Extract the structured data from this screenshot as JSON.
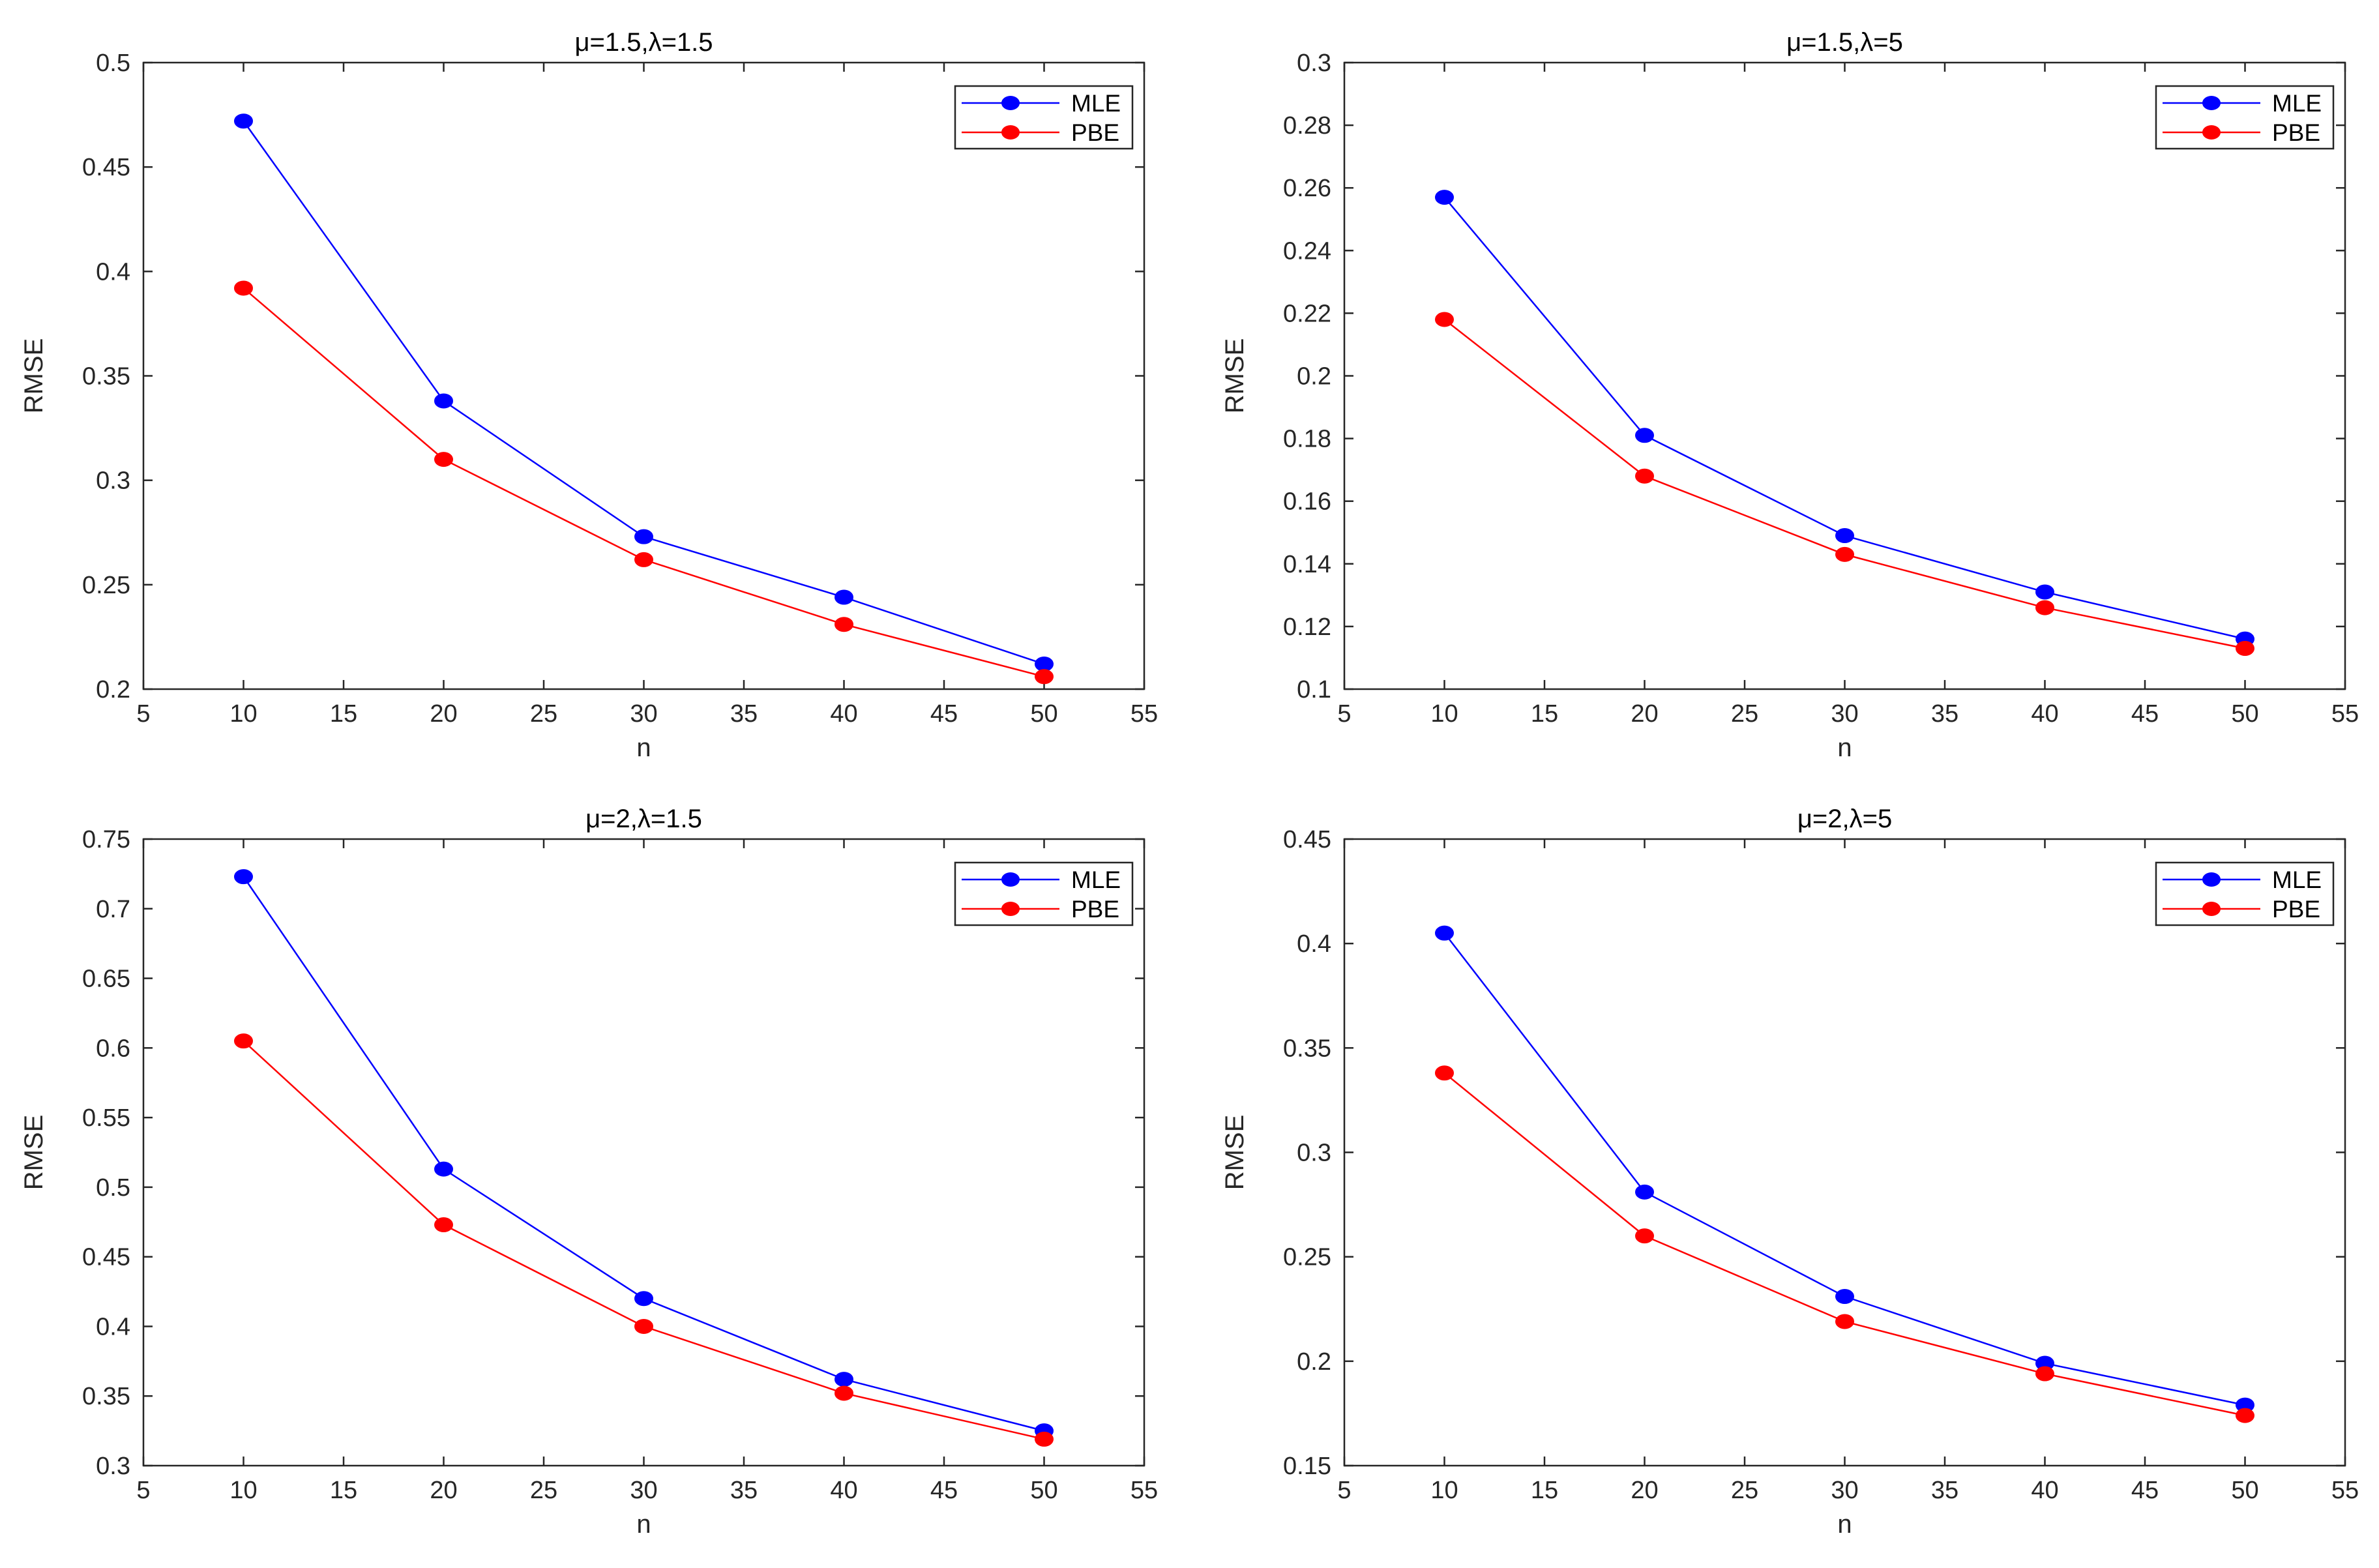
{
  "chart_data": [
    {
      "type": "line",
      "title": "μ=1.5,λ=1.5",
      "xlabel": "n",
      "ylabel": "RMSE",
      "xlim": [
        5,
        55
      ],
      "ylim": [
        0.2,
        0.5
      ],
      "xticks": [
        5,
        10,
        15,
        20,
        25,
        30,
        35,
        40,
        45,
        50,
        55
      ],
      "xtick_labels": [
        "5",
        "10",
        "15",
        "20",
        "25",
        "30",
        "35",
        "40",
        "45",
        "50",
        "55"
      ],
      "yticks": [
        0.2,
        0.25,
        0.3,
        0.35,
        0.4,
        0.45,
        0.5
      ],
      "ytick_labels": [
        "0.2",
        "0.25",
        "0.3",
        "0.35",
        "0.4",
        "0.45",
        "0.5"
      ],
      "legend_position": "top-right",
      "x": [
        10,
        20,
        30,
        40,
        50
      ],
      "series": [
        {
          "name": "MLE",
          "color": "#0000ff",
          "values": [
            0.472,
            0.338,
            0.273,
            0.244,
            0.212
          ]
        },
        {
          "name": "PBE",
          "color": "#ff0000",
          "values": [
            0.392,
            0.31,
            0.262,
            0.231,
            0.206
          ]
        }
      ]
    },
    {
      "type": "line",
      "title": "μ=1.5,λ=5",
      "xlabel": "n",
      "ylabel": "RMSE",
      "xlim": [
        5,
        55
      ],
      "ylim": [
        0.1,
        0.3
      ],
      "xticks": [
        5,
        10,
        15,
        20,
        25,
        30,
        35,
        40,
        45,
        50,
        55
      ],
      "xtick_labels": [
        "5",
        "10",
        "15",
        "20",
        "25",
        "30",
        "35",
        "40",
        "45",
        "50",
        "55"
      ],
      "yticks": [
        0.1,
        0.12,
        0.14,
        0.16,
        0.18,
        0.2,
        0.22,
        0.24,
        0.26,
        0.28,
        0.3
      ],
      "ytick_labels": [
        "0.1",
        "0.12",
        "0.14",
        "0.16",
        "0.18",
        "0.2",
        "0.22",
        "0.24",
        "0.26",
        "0.28",
        "0.3"
      ],
      "legend_position": "top-right",
      "x": [
        10,
        20,
        30,
        40,
        50
      ],
      "series": [
        {
          "name": "MLE",
          "color": "#0000ff",
          "values": [
            0.257,
            0.181,
            0.149,
            0.131,
            0.116
          ]
        },
        {
          "name": "PBE",
          "color": "#ff0000",
          "values": [
            0.218,
            0.168,
            0.143,
            0.126,
            0.113
          ]
        }
      ]
    },
    {
      "type": "line",
      "title": "μ=2,λ=1.5",
      "xlabel": "n",
      "ylabel": "RMSE",
      "xlim": [
        5,
        55
      ],
      "ylim": [
        0.3,
        0.75
      ],
      "xticks": [
        5,
        10,
        15,
        20,
        25,
        30,
        35,
        40,
        45,
        50,
        55
      ],
      "xtick_labels": [
        "5",
        "10",
        "15",
        "20",
        "25",
        "30",
        "35",
        "40",
        "45",
        "50",
        "55"
      ],
      "yticks": [
        0.3,
        0.35,
        0.4,
        0.45,
        0.5,
        0.55,
        0.6,
        0.65,
        0.7,
        0.75
      ],
      "ytick_labels": [
        "0.3",
        "0.35",
        "0.4",
        "0.45",
        "0.5",
        "0.55",
        "0.6",
        "0.65",
        "0.7",
        "0.75"
      ],
      "legend_position": "top-right",
      "x": [
        10,
        20,
        30,
        40,
        50
      ],
      "series": [
        {
          "name": "MLE",
          "color": "#0000ff",
          "values": [
            0.723,
            0.513,
            0.42,
            0.362,
            0.325
          ]
        },
        {
          "name": "PBE",
          "color": "#ff0000",
          "values": [
            0.605,
            0.473,
            0.4,
            0.352,
            0.319
          ]
        }
      ]
    },
    {
      "type": "line",
      "title": "μ=2,λ=5",
      "xlabel": "n",
      "ylabel": "RMSE",
      "xlim": [
        5,
        55
      ],
      "ylim": [
        0.15,
        0.45
      ],
      "xticks": [
        5,
        10,
        15,
        20,
        25,
        30,
        35,
        40,
        45,
        50,
        55
      ],
      "xtick_labels": [
        "5",
        "10",
        "15",
        "20",
        "25",
        "30",
        "35",
        "40",
        "45",
        "50",
        "55"
      ],
      "yticks": [
        0.15,
        0.2,
        0.25,
        0.3,
        0.35,
        0.4,
        0.45
      ],
      "ytick_labels": [
        "0.15",
        "0.2",
        "0.25",
        "0.3",
        "0.35",
        "0.4",
        "0.45"
      ],
      "legend_position": "top-right",
      "x": [
        10,
        20,
        30,
        40,
        50
      ],
      "series": [
        {
          "name": "MLE",
          "color": "#0000ff",
          "values": [
            0.405,
            0.281,
            0.231,
            0.199,
            0.179
          ]
        },
        {
          "name": "PBE",
          "color": "#ff0000",
          "values": [
            0.338,
            0.26,
            0.219,
            0.194,
            0.174
          ]
        }
      ]
    }
  ]
}
